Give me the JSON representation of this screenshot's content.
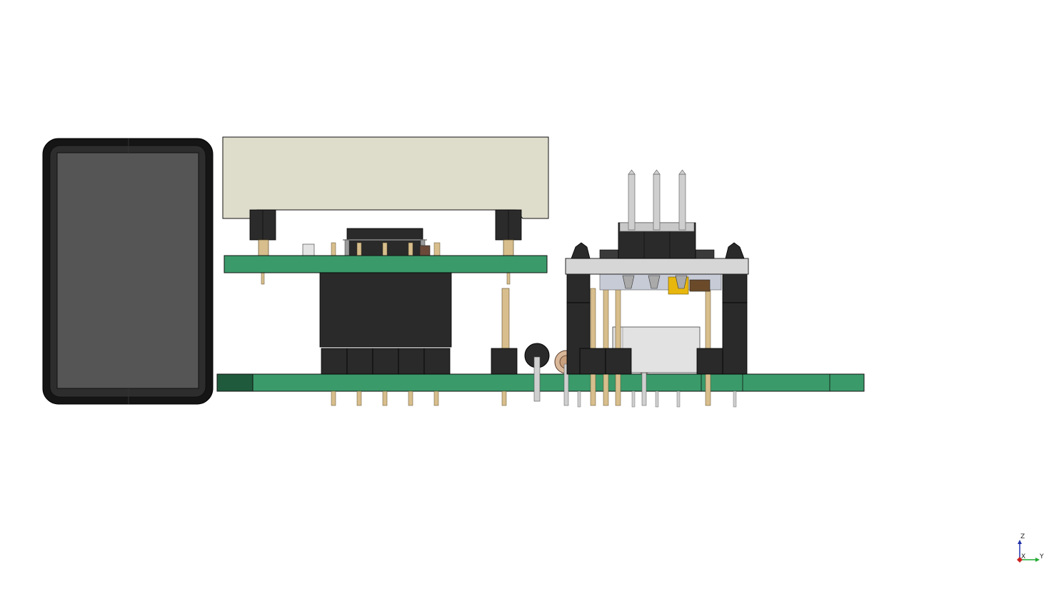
{
  "scene": {
    "view": "side-view",
    "assembly": "pcb-stack-with-connectors",
    "colors": {
      "pcb_green": "#3a9a6a",
      "pcb_dark": "#1f5a3c",
      "connector_black": "#2a2a2a",
      "pin_brass": "#d7be8c",
      "display_gray": "#555555",
      "display_bezel": "#151515",
      "beige_part": "#dedccb",
      "gray_part": "#d6d6d6",
      "yellow_part": "#e8b70d",
      "edge_line": "#111111"
    },
    "icons": [
      "display-module-icon",
      "pin-header-icon",
      "standoff-icon",
      "ic-chip-icon",
      "trimmer-pot-icon"
    ]
  },
  "axes": {
    "z_label": "Z",
    "x_label": "X",
    "y_label": "Y",
    "colors": {
      "z": "#2233aa",
      "x": "#cc2222",
      "y": "#22aa33"
    }
  }
}
